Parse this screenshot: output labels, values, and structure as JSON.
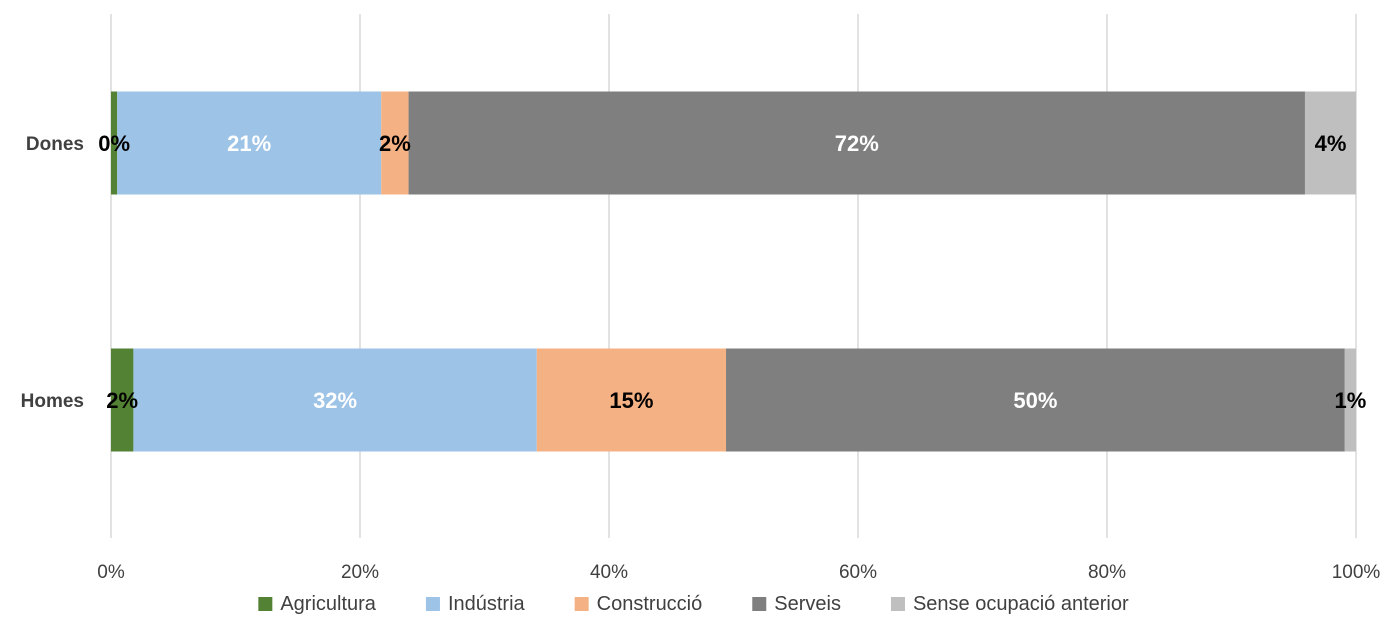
{
  "chart_data": {
    "type": "bar",
    "orientation": "horizontal",
    "stacked": "100%",
    "categories": [
      "Dones",
      "Homes"
    ],
    "series": [
      {
        "name": "Agricultura",
        "color": "#548235",
        "values": [
          0.5,
          1.8
        ],
        "labels": [
          "0%",
          "2%"
        ],
        "label_color": "#000000"
      },
      {
        "name": "Indústria",
        "color": "#9DC3E6",
        "values": [
          21.2,
          32.4
        ],
        "labels": [
          "21%",
          "32%"
        ],
        "label_color": "#ffffff"
      },
      {
        "name": "Construcció",
        "color": "#F4B183",
        "values": [
          2.2,
          15.2
        ],
        "labels": [
          "2%",
          "15%"
        ],
        "label_color": "#000000"
      },
      {
        "name": "Serveis",
        "color": "#7F7F7F",
        "values": [
          72.0,
          49.7
        ],
        "labels": [
          "72%",
          "50%"
        ],
        "label_color": "#ffffff"
      },
      {
        "name": "Sense ocupació anterior",
        "color": "#BFBFBF",
        "values": [
          4.1,
          0.9
        ],
        "labels": [
          "4%",
          "1%"
        ],
        "label_color": "#000000"
      }
    ],
    "x_ticks": [
      "0%",
      "20%",
      "40%",
      "60%",
      "80%",
      "100%"
    ],
    "xlim": [
      0,
      100
    ],
    "grid": true,
    "legend_position": "bottom"
  }
}
